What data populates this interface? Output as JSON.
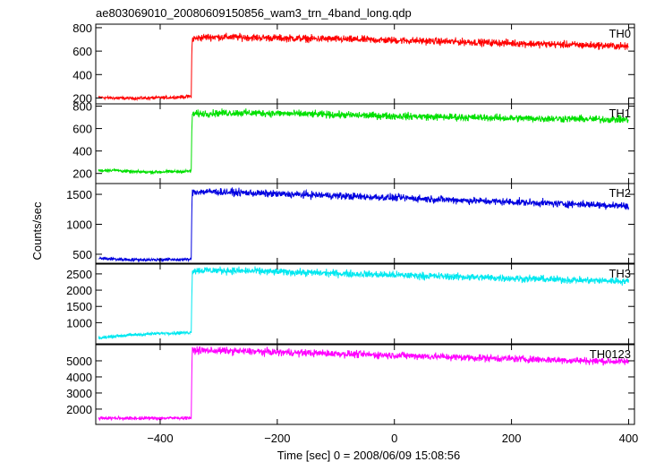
{
  "chart_data": {
    "type": "line",
    "title": "ae803069010_20080609150856_wam3_trn_4band_long.qdp",
    "xlabel": "Time [sec] 0 = 2008/06/09 15:08:56",
    "ylabel": "Counts/sec",
    "xlim": [
      -510,
      410
    ],
    "x_ticks": [
      -400,
      -200,
      0,
      200,
      400
    ],
    "x_tick_labels": [
      "−400",
      "−200",
      "0",
      "200",
      "400"
    ],
    "grid": false,
    "series": [
      {
        "name": "TH0",
        "color": "#ff0000",
        "ylim": [
          150,
          830
        ],
        "y_ticks": [
          200,
          400,
          600,
          800
        ],
        "x": [
          -505,
          -480,
          -450,
          -420,
          -390,
          -360,
          -347,
          -346,
          -345,
          -320,
          -280,
          -240,
          -200,
          -160,
          -120,
          -80,
          -40,
          0,
          40,
          80,
          120,
          160,
          200,
          240,
          280,
          320,
          360,
          400
        ],
        "y": [
          205,
          200,
          198,
          200,
          203,
          210,
          215,
          560,
          705,
          720,
          720,
          715,
          712,
          708,
          705,
          700,
          697,
          692,
          688,
          683,
          678,
          672,
          668,
          662,
          657,
          652,
          647,
          640
        ]
      },
      {
        "name": "TH1",
        "color": "#00e000",
        "ylim": [
          110,
          820
        ],
        "y_ticks": [
          200,
          400,
          600,
          800
        ],
        "x": [
          -505,
          -480,
          -450,
          -420,
          -390,
          -360,
          -347,
          -346,
          -345,
          -320,
          -280,
          -240,
          -200,
          -160,
          -120,
          -80,
          -40,
          0,
          40,
          80,
          120,
          160,
          200,
          240,
          280,
          320,
          360,
          400
        ],
        "y": [
          225,
          230,
          215,
          212,
          215,
          218,
          222,
          560,
          730,
          735,
          740,
          738,
          735,
          730,
          725,
          720,
          715,
          712,
          708,
          703,
          700,
          697,
          692,
          690,
          688,
          685,
          682,
          680
        ]
      },
      {
        "name": "TH2",
        "color": "#0000e0",
        "ylim": [
          350,
          1680
        ],
        "y_ticks": [
          500,
          1000,
          1500
        ],
        "x": [
          -505,
          -480,
          -450,
          -420,
          -390,
          -360,
          -347,
          -346,
          -345,
          -320,
          -280,
          -240,
          -200,
          -160,
          -120,
          -80,
          -40,
          0,
          40,
          80,
          120,
          160,
          200,
          240,
          280,
          320,
          360,
          400
        ],
        "y": [
          430,
          420,
          410,
          408,
          410,
          412,
          415,
          1200,
          1540,
          1545,
          1535,
          1520,
          1505,
          1495,
          1485,
          1470,
          1455,
          1445,
          1430,
          1415,
          1400,
          1385,
          1372,
          1360,
          1345,
          1335,
          1320,
          1310
        ]
      },
      {
        "name": "TH3",
        "color": "#00e8f0",
        "ylim": [
          350,
          2800
        ],
        "y_ticks": [
          1000,
          1500,
          2000,
          2500
        ],
        "x": [
          -505,
          -480,
          -450,
          -420,
          -390,
          -360,
          -347,
          -346,
          -345,
          -320,
          -280,
          -240,
          -200,
          -160,
          -120,
          -80,
          -40,
          0,
          40,
          80,
          120,
          160,
          200,
          240,
          280,
          320,
          360,
          400
        ],
        "y": [
          520,
          580,
          620,
          650,
          680,
          690,
          700,
          1800,
          2600,
          2610,
          2600,
          2585,
          2565,
          2545,
          2525,
          2505,
          2485,
          2465,
          2445,
          2425,
          2405,
          2385,
          2365,
          2345,
          2325,
          2305,
          2290,
          2275
        ]
      },
      {
        "name": "TH0123",
        "color": "#ff00ff",
        "ylim": [
          1050,
          6000
        ],
        "y_ticks": [
          2000,
          3000,
          4000,
          5000
        ],
        "x": [
          -505,
          -480,
          -450,
          -420,
          -390,
          -360,
          -347,
          -346,
          -345,
          -320,
          -280,
          -240,
          -200,
          -160,
          -120,
          -80,
          -40,
          0,
          40,
          80,
          120,
          160,
          200,
          240,
          280,
          320,
          360,
          400
        ],
        "y": [
          1450,
          1440,
          1430,
          1430,
          1440,
          1450,
          1460,
          4000,
          5650,
          5640,
          5610,
          5575,
          5540,
          5500,
          5460,
          5420,
          5380,
          5340,
          5300,
          5255,
          5210,
          5170,
          5130,
          5090,
          5050,
          5010,
          4975,
          4940
        ]
      }
    ]
  }
}
